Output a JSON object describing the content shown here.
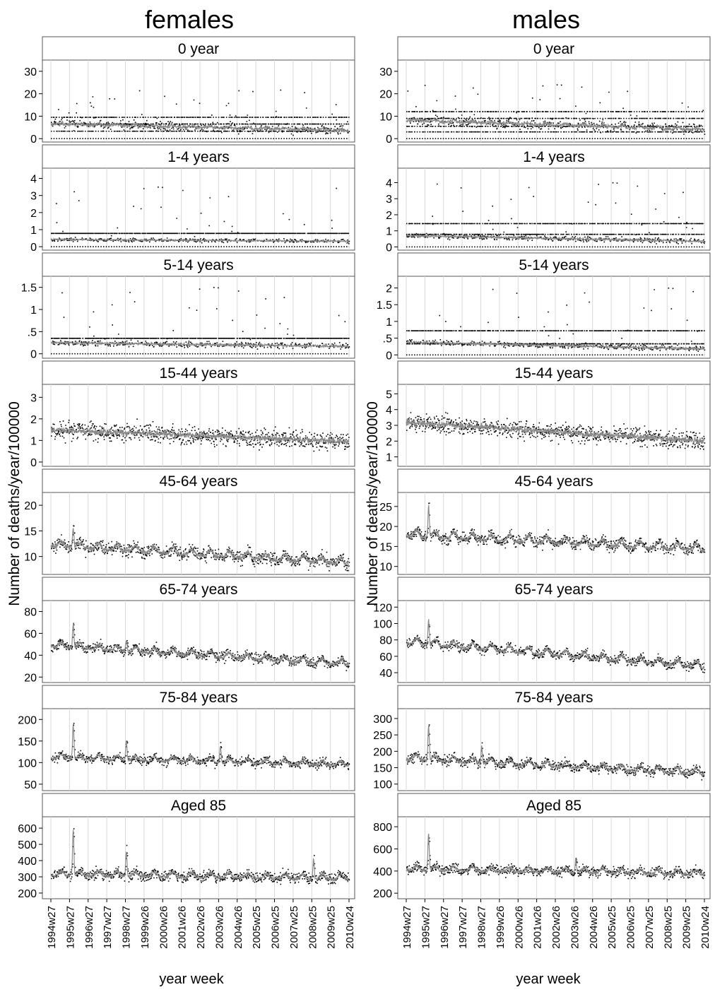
{
  "figure": {
    "xlabel": "year week",
    "ylabel": "Number of deaths/year/100000",
    "x_ticks": [
      "1994w27",
      "1995w27",
      "1996w27",
      "1997w27",
      "1998w27",
      "1999w26",
      "2000w26",
      "2001w26",
      "2002w26",
      "2003w26",
      "2004w26",
      "2005w25",
      "2006w25",
      "2007w25",
      "2008w25",
      "2009w25",
      "2010w24"
    ],
    "grid": "vertical lines at year ticks",
    "style": {
      "observed_color": "#000000",
      "fitted_color": "#8c8c8c",
      "threshold_color": "#000000",
      "grid_color": "#d9d9d9",
      "strip_bg": "#ffffff"
    }
  },
  "chart_data": [
    {
      "type": "line",
      "title": "females",
      "panels": [
        {
          "label": "0 year",
          "yticks": [
            0,
            10,
            20,
            30
          ],
          "ylim": [
            -1.5,
            35
          ],
          "level": 6.5,
          "slope": -3.0,
          "noise": 1.5,
          "outlier_rate": 0.04,
          "outlier_max": 22,
          "thresholds": [
            9.5,
            6.5,
            3.3
          ],
          "threshold_zero": true,
          "peaks": []
        },
        {
          "label": "1-4 years",
          "yticks": [
            0,
            1,
            2,
            3,
            4
          ],
          "ylim": [
            -0.2,
            4.6
          ],
          "level": 0.42,
          "slope": -0.1,
          "noise": 0.08,
          "outlier_rate": 0.04,
          "outlier_max": 3.5,
          "thresholds": [
            0.78
          ],
          "threshold_zero": true,
          "peaks": []
        },
        {
          "label": "5-14 years",
          "yticks": [
            0,
            0.5,
            1,
            1.5
          ],
          "ytick_labels": [
            "0",
            ".5",
            "1",
            "1.5"
          ],
          "ylim": [
            -0.1,
            1.75
          ],
          "level": 0.25,
          "slope": -0.08,
          "noise": 0.05,
          "outlier_rate": 0.04,
          "outlier_max": 1.5,
          "thresholds": [
            0.35
          ],
          "threshold_zero": true,
          "peaks": []
        },
        {
          "label": "15-44 years",
          "yticks": [
            0,
            1,
            2,
            3
          ],
          "ylim": [
            -0.2,
            3.6
          ],
          "level": 1.5,
          "slope": -0.55,
          "noise": 0.3,
          "outlier_rate": 0,
          "outlier_max": 0,
          "thresholds": [],
          "threshold_zero": false,
          "peaks": []
        },
        {
          "label": "45-64 years",
          "yticks": [
            10,
            15,
            20
          ],
          "ylim": [
            6.5,
            22.5
          ],
          "level": 12.0,
          "slope": -3.5,
          "noise": 0.9,
          "outlier_rate": 0,
          "outlier_max": 0,
          "thresholds": [],
          "threshold_zero": false,
          "peaks": [
            [
              1.2,
              4
            ]
          ]
        },
        {
          "label": "65-74 years",
          "yticks": [
            20,
            40,
            60,
            80
          ],
          "ylim": [
            15,
            90
          ],
          "level": 48,
          "slope": -17,
          "noise": 3,
          "outlier_rate": 0,
          "outlier_max": 0,
          "thresholds": [],
          "threshold_zero": false,
          "peaks": [
            [
              1.2,
              22
            ],
            [
              4.05,
              10
            ]
          ]
        },
        {
          "label": "75-84 years",
          "yticks": [
            50,
            100,
            150,
            200
          ],
          "ylim": [
            35,
            225
          ],
          "level": 110,
          "slope": -17,
          "noise": 7,
          "outlier_rate": 0,
          "outlier_max": 0,
          "thresholds": [],
          "threshold_zero": false,
          "peaks": [
            [
              1.2,
              80
            ],
            [
              4.05,
              45
            ],
            [
              9.1,
              40
            ]
          ]
        },
        {
          "label": "Aged 85",
          "yticks": [
            200,
            300,
            400,
            500,
            600
          ],
          "ylim": [
            165,
            670
          ],
          "level": 310,
          "slope": -25,
          "noise": 22,
          "outlier_rate": 0,
          "outlier_max": 0,
          "thresholds": [],
          "threshold_zero": false,
          "peaks": [
            [
              1.2,
              280
            ],
            [
              4.05,
              150
            ],
            [
              14.1,
              120
            ]
          ]
        }
      ]
    },
    {
      "type": "line",
      "title": "males",
      "panels": [
        {
          "label": "0 year",
          "yticks": [
            0,
            10,
            20,
            30
          ],
          "ylim": [
            -1.5,
            35
          ],
          "level": 8.0,
          "slope": -4.0,
          "noise": 1.8,
          "outlier_rate": 0.04,
          "outlier_max": 24,
          "thresholds": [
            12,
            9,
            5.5,
            3
          ],
          "threshold_zero": true,
          "peaks": []
        },
        {
          "label": "1-4 years",
          "yticks": [
            0,
            1,
            2,
            3,
            4
          ],
          "ylim": [
            -0.2,
            4.9
          ],
          "level": 0.7,
          "slope": -0.35,
          "noise": 0.12,
          "outlier_rate": 0.04,
          "outlier_max": 4.0,
          "thresholds": [
            1.45,
            0.78
          ],
          "threshold_zero": true,
          "peaks": []
        },
        {
          "label": "5-14 years",
          "yticks": [
            0,
            0.5,
            1,
            1.5,
            2
          ],
          "ytick_labels": [
            "0",
            ".5",
            "1",
            "1.5",
            "2"
          ],
          "ylim": [
            -0.1,
            2.35
          ],
          "level": 0.38,
          "slope": -0.2,
          "noise": 0.06,
          "outlier_rate": 0.04,
          "outlier_max": 2.0,
          "thresholds": [
            0.72,
            0.33
          ],
          "threshold_zero": true,
          "peaks": []
        },
        {
          "label": "15-44 years",
          "yticks": [
            1,
            2,
            3,
            4,
            5
          ],
          "ylim": [
            0.4,
            5.6
          ],
          "level": 3.2,
          "slope": -1.2,
          "noise": 0.4,
          "outlier_rate": 0,
          "outlier_max": 0,
          "thresholds": [],
          "threshold_zero": false,
          "peaks": []
        },
        {
          "label": "45-64 years",
          "yticks": [
            10,
            15,
            20,
            25
          ],
          "ylim": [
            8,
            28.5
          ],
          "level": 17.5,
          "slope": -3.5,
          "noise": 1.0,
          "outlier_rate": 0,
          "outlier_max": 0,
          "thresholds": [],
          "threshold_zero": false,
          "peaks": [
            [
              1.2,
              8
            ]
          ]
        },
        {
          "label": "65-74 years",
          "yticks": [
            40,
            60,
            80,
            100,
            120
          ],
          "ylim": [
            28,
            128
          ],
          "level": 76,
          "slope": -30,
          "noise": 4,
          "outlier_rate": 0,
          "outlier_max": 0,
          "thresholds": [],
          "threshold_zero": false,
          "peaks": [
            [
              1.2,
              30
            ]
          ]
        },
        {
          "label": "75-84 years",
          "yticks": [
            100,
            150,
            200,
            250,
            300
          ],
          "ylim": [
            80,
            330
          ],
          "level": 175,
          "slope": -45,
          "noise": 10,
          "outlier_rate": 0,
          "outlier_max": 0,
          "thresholds": [],
          "threshold_zero": false,
          "peaks": [
            [
              1.2,
              110
            ],
            [
              4.05,
              50
            ]
          ]
        },
        {
          "label": "Aged 85",
          "yticks": [
            200,
            400,
            600,
            800
          ],
          "ylim": [
            150,
            890
          ],
          "level": 410,
          "slope": -40,
          "noise": 30,
          "outlier_rate": 0,
          "outlier_max": 0,
          "thresholds": [],
          "threshold_zero": false,
          "peaks": [
            [
              1.2,
              330
            ],
            [
              9.1,
              120
            ]
          ]
        }
      ]
    }
  ]
}
